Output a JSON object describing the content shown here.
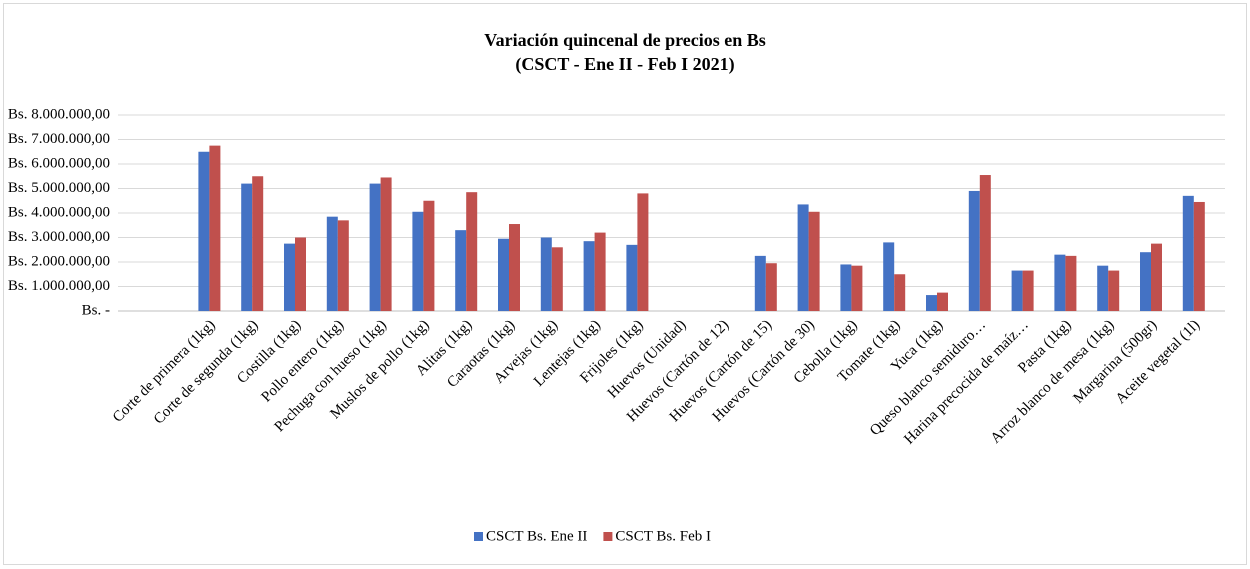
{
  "chart_data": {
    "type": "bar",
    "title": "Variación quincenal de precios en Bs",
    "subtitle": "(CSCT - Ene II - Feb I 2021)",
    "categories": [
      "Corte de primera (1kg)",
      "Corte de segunda (1kg)",
      "Costilla (1kg)",
      "Pollo entero (1kg)",
      "Pechuga con hueso (1kg)",
      "Muslos de pollo (1kg)",
      "Alitas (1kg)",
      "Caraotas (1kg)",
      "Arvejas (1kg)",
      "Lentejas (1kg)",
      "Frijoles (1kg)",
      "Huevos (Unidad)",
      "Huevos (Cartón de 12)",
      "Huevos (Cartón de 15)",
      "Huevos (Cartón de 30)",
      "Cebolla (1kg)",
      "Tomate (1kg)",
      "Yuca (1kg)",
      "Queso blanco semiduro…",
      "Harina precocida de maíz…",
      "Pasta (1kg)",
      "Arroz blanco de mesa (1kg)",
      "Margarina (500gr)",
      "Aceite vegetal (1l)"
    ],
    "series": [
      {
        "name": "CSCT Bs. Ene II",
        "color": "#4472c4",
        "values": [
          6500000,
          5200000,
          2750000,
          3850000,
          5200000,
          4050000,
          3300000,
          2950000,
          3000000,
          2850000,
          2700000,
          null,
          null,
          2250000,
          4350000,
          1900000,
          2800000,
          650000,
          4900000,
          1650000,
          2300000,
          1850000,
          2400000,
          4700000
        ]
      },
      {
        "name": "CSCT Bs. Feb I",
        "color": "#c0504d",
        "values": [
          6750000,
          5500000,
          3000000,
          3700000,
          5450000,
          4500000,
          4850000,
          3550000,
          2600000,
          3200000,
          4800000,
          null,
          null,
          1950000,
          4050000,
          1850000,
          1500000,
          750000,
          5550000,
          1650000,
          2250000,
          1650000,
          2750000,
          4450000
        ]
      }
    ],
    "ylim": [
      0,
      8000000
    ],
    "yticks": [
      {
        "value": 0,
        "label": "Bs. -"
      },
      {
        "value": 1000000,
        "label": "Bs. 1.000.000,00"
      },
      {
        "value": 2000000,
        "label": "Bs. 2.000.000,00"
      },
      {
        "value": 3000000,
        "label": "Bs. 3.000.000,00"
      },
      {
        "value": 4000000,
        "label": "Bs. 4.000.000,00"
      },
      {
        "value": 5000000,
        "label": "Bs. 5.000.000,00"
      },
      {
        "value": 6000000,
        "label": "Bs. 6.000.000,00"
      },
      {
        "value": 7000000,
        "label": "Bs. 7.000.000,00"
      },
      {
        "value": 8000000,
        "label": "Bs. 8.000.000,00"
      }
    ],
    "grid": true,
    "legend": "bottom"
  }
}
